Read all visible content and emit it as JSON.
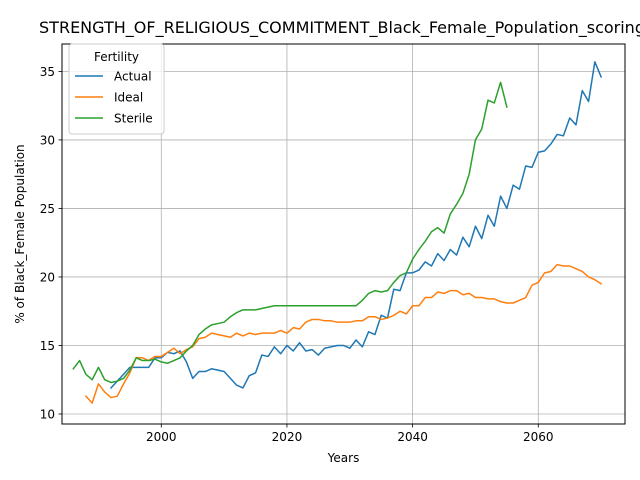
{
  "chart_data": {
    "type": "line",
    "title": "STRENGTH_OF_RELIGIOUS_COMMITMENT_Black_Female_Population_scoring",
    "xlabel": "Years",
    "ylabel": "% of Black_Female Population",
    "xlim": [
      1984.2,
      2073.8
    ],
    "ylim": [
      9.27,
      37.0
    ],
    "xticks": [
      2000,
      2020,
      2040,
      2060
    ],
    "yticks": [
      10,
      15,
      20,
      25,
      30,
      35
    ],
    "grid": true,
    "legend": {
      "title": "Fertility",
      "placement": "top-left"
    },
    "series": [
      {
        "name": "Actual",
        "color": "#1f77b4",
        "x": [
          1992,
          1993,
          1994,
          1995,
          1996,
          1997,
          1998,
          1999,
          2000,
          2001,
          2002,
          2003,
          2004,
          2005,
          2006,
          2007,
          2008,
          2009,
          2010,
          2011,
          2012,
          2013,
          2014,
          2015,
          2016,
          2017,
          2018,
          2019,
          2020,
          2021,
          2022,
          2023,
          2024,
          2025,
          2026,
          2027,
          2028,
          2029,
          2030,
          2031,
          2032,
          2033,
          2034,
          2035,
          2036,
          2037,
          2038,
          2039,
          2040,
          2041,
          2042,
          2043,
          2044,
          2045,
          2046,
          2047,
          2048,
          2049,
          2050,
          2051,
          2052,
          2053,
          2054,
          2055,
          2056,
          2057,
          2058,
          2059,
          2060,
          2061,
          2062,
          2063,
          2064,
          2065,
          2066,
          2067,
          2068,
          2069,
          2070
        ],
        "values": [
          11.9,
          12.4,
          12.9,
          13.4,
          13.4,
          13.4,
          13.4,
          14.1,
          14.1,
          14.5,
          14.4,
          14.6,
          13.8,
          12.6,
          13.1,
          13.1,
          13.3,
          13.2,
          13.1,
          12.6,
          12.1,
          11.9,
          12.8,
          13.0,
          14.3,
          14.2,
          14.9,
          14.4,
          15.0,
          14.6,
          15.2,
          14.6,
          14.7,
          14.3,
          14.8,
          14.9,
          15.0,
          15.0,
          14.8,
          15.4,
          14.9,
          16.0,
          15.8,
          17.2,
          17.0,
          19.1,
          19.0,
          20.3,
          20.3,
          20.5,
          21.1,
          20.8,
          21.7,
          21.2,
          22.0,
          21.6,
          22.9,
          22.2,
          23.7,
          22.8,
          24.5,
          23.7,
          25.9,
          25.0,
          26.7,
          26.4,
          28.1,
          28.0,
          29.1,
          29.2,
          29.7,
          30.4,
          30.3,
          31.6,
          31.1,
          33.6,
          32.8,
          35.7,
          34.6
        ]
      },
      {
        "name": "Ideal",
        "color": "#ff7f0e",
        "x": [
          1988,
          1989,
          1990,
          1991,
          1992,
          1993,
          1994,
          1995,
          1996,
          1997,
          1998,
          1999,
          2000,
          2001,
          2002,
          2003,
          2004,
          2005,
          2006,
          2007,
          2008,
          2009,
          2010,
          2011,
          2012,
          2013,
          2014,
          2015,
          2016,
          2017,
          2018,
          2019,
          2020,
          2021,
          2022,
          2023,
          2024,
          2025,
          2026,
          2027,
          2028,
          2029,
          2030,
          2031,
          2032,
          2033,
          2034,
          2035,
          2036,
          2037,
          2038,
          2039,
          2040,
          2041,
          2042,
          2043,
          2044,
          2045,
          2046,
          2047,
          2048,
          2049,
          2050,
          2051,
          2052,
          2053,
          2054,
          2055,
          2056,
          2057,
          2058,
          2059,
          2060,
          2061,
          2062,
          2063,
          2064,
          2065,
          2066,
          2067,
          2068,
          2069,
          2070
        ],
        "values": [
          11.3,
          10.8,
          12.2,
          11.6,
          11.2,
          11.3,
          12.2,
          13.0,
          14.1,
          14.1,
          13.9,
          14.2,
          14.2,
          14.5,
          14.8,
          14.4,
          14.7,
          14.9,
          15.5,
          15.6,
          15.9,
          15.8,
          15.7,
          15.6,
          15.9,
          15.7,
          15.9,
          15.8,
          15.9,
          15.9,
          15.9,
          16.1,
          15.9,
          16.3,
          16.2,
          16.7,
          16.9,
          16.9,
          16.8,
          16.8,
          16.7,
          16.7,
          16.7,
          16.8,
          16.8,
          17.1,
          17.1,
          16.9,
          17.0,
          17.2,
          17.5,
          17.3,
          17.9,
          17.9,
          18.5,
          18.5,
          18.9,
          18.8,
          19.0,
          19.0,
          18.7,
          18.8,
          18.5,
          18.5,
          18.4,
          18.4,
          18.2,
          18.1,
          18.1,
          18.3,
          18.5,
          19.4,
          19.6,
          20.3,
          20.4,
          20.9,
          20.8,
          20.8,
          20.6,
          20.4,
          20.0,
          19.8,
          19.5
        ]
      },
      {
        "name": "Sterile",
        "color": "#2ca02c",
        "x": [
          1986,
          1987,
          1988,
          1989,
          1990,
          1991,
          1992,
          1993,
          1994,
          1995,
          1996,
          1997,
          1998,
          1999,
          2000,
          2001,
          2002,
          2003,
          2004,
          2005,
          2006,
          2007,
          2008,
          2009,
          2010,
          2011,
          2012,
          2013,
          2014,
          2015,
          2016,
          2017,
          2018,
          2019,
          2020,
          2021,
          2022,
          2023,
          2024,
          2025,
          2026,
          2027,
          2028,
          2029,
          2030,
          2031,
          2032,
          2033,
          2034,
          2035,
          2036,
          2037,
          2038,
          2039,
          2040,
          2041,
          2042,
          2043,
          2044,
          2045,
          2046,
          2047,
          2048,
          2049,
          2050,
          2051,
          2052,
          2053,
          2054,
          2055
        ],
        "values": [
          13.3,
          13.9,
          12.9,
          12.5,
          13.4,
          12.5,
          12.3,
          12.4,
          12.6,
          13.2,
          14.1,
          13.9,
          13.9,
          14.0,
          13.8,
          13.7,
          13.9,
          14.1,
          14.6,
          15.0,
          15.8,
          16.2,
          16.5,
          16.6,
          16.7,
          17.1,
          17.4,
          17.6,
          17.6,
          17.6,
          17.7,
          17.8,
          17.9,
          17.9,
          17.9,
          17.9,
          17.9,
          17.9,
          17.9,
          17.9,
          17.9,
          17.9,
          17.9,
          17.9,
          17.9,
          17.9,
          18.3,
          18.8,
          19.0,
          18.9,
          19.0,
          19.6,
          20.1,
          20.3,
          21.3,
          22.0,
          22.6,
          23.3,
          23.6,
          23.2,
          24.6,
          25.3,
          26.1,
          27.5,
          30.0,
          30.8,
          32.9,
          32.7,
          34.2,
          32.4
        ]
      }
    ]
  }
}
